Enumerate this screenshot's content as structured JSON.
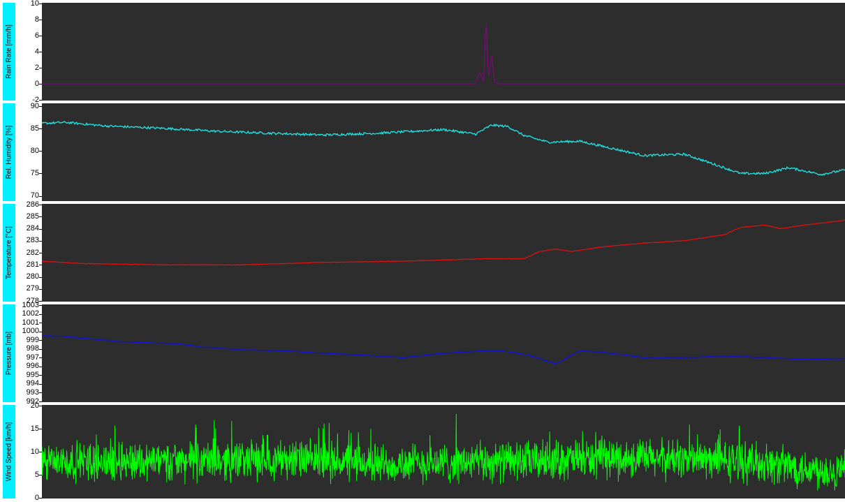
{
  "chart_data": [
    {
      "type": "line",
      "ylabel": "Rain Rate [mm/h]",
      "ylim": [
        -2,
        10
      ],
      "yticks": [
        -2,
        0,
        2,
        4,
        6,
        8,
        10
      ],
      "color": "#7a0a78",
      "background": "#2d2d2d",
      "x": [
        0,
        50,
        54,
        54.5,
        55,
        55.3,
        55.6,
        56,
        56.4,
        57,
        100
      ],
      "series": [
        {
          "values": [
            0,
            0,
            0,
            1.5,
            0.3,
            8.2,
            0.5,
            3.5,
            0.2,
            0,
            0
          ]
        }
      ]
    },
    {
      "type": "line",
      "ylabel": "Rel. Humidity [%]",
      "ylim": [
        69,
        90.5
      ],
      "yticks": [
        70,
        75,
        80,
        85,
        90
      ],
      "color": "#1fe8e8",
      "background": "#2d2d2d",
      "x": [
        0,
        3,
        8,
        15,
        22,
        30,
        35,
        42,
        50,
        54,
        56,
        58,
        60,
        63,
        67,
        70,
        75,
        80,
        83,
        87,
        90,
        93,
        97,
        100
      ],
      "series": [
        {
          "values": [
            86.2,
            86.4,
            85.6,
            85.1,
            84.4,
            83.9,
            83.6,
            84.0,
            84.8,
            83.8,
            85.8,
            85.5,
            83.5,
            82.0,
            82.2,
            81.0,
            79.0,
            79.3,
            77.5,
            75.0,
            75.0,
            76.3,
            74.8,
            75.8
          ]
        }
      ]
    },
    {
      "type": "line",
      "ylabel": "Temperature [°C]",
      "ylim": [
        278,
        286
      ],
      "yticks": [
        278,
        279,
        280,
        281,
        282,
        283,
        284,
        285,
        286
      ],
      "color": "#e01010",
      "background": "#2d2d2d",
      "x": [
        0,
        5,
        15,
        25,
        35,
        45,
        55,
        60,
        62,
        64,
        66,
        70,
        75,
        80,
        85,
        87,
        90,
        92,
        95,
        100
      ],
      "series": [
        {
          "values": [
            281.3,
            281.1,
            281.0,
            281.0,
            281.2,
            281.3,
            281.5,
            281.5,
            282.1,
            282.3,
            282.1,
            282.5,
            282.8,
            283.0,
            283.5,
            284.1,
            284.3,
            284.0,
            284.3,
            284.7
          ]
        }
      ]
    },
    {
      "type": "line",
      "ylabel": "Pressure [mb]",
      "ylim": [
        992,
        1003
      ],
      "yticks": [
        992,
        993,
        994,
        995,
        996,
        997,
        998,
        999,
        1000,
        1001,
        1002,
        1003
      ],
      "color": "#1010e0",
      "background": "#2d2d2d",
      "x": [
        0,
        3,
        10,
        17,
        20,
        25,
        30,
        35,
        40,
        45,
        50,
        55,
        58,
        61,
        64,
        67,
        70,
        75,
        80,
        85,
        90,
        95,
        100
      ],
      "series": [
        {
          "values": [
            999.5,
            999.4,
            998.8,
            998.6,
            998.2,
            997.9,
            997.8,
            997.5,
            997.3,
            997.0,
            997.5,
            997.8,
            997.7,
            997.2,
            996.3,
            997.8,
            997.6,
            997.0,
            997.0,
            997.2,
            997.0,
            996.8,
            996.9
          ]
        }
      ]
    },
    {
      "type": "line",
      "ylabel": "Wind Speed [km/h]",
      "ylim": [
        0,
        20
      ],
      "yticks": [
        0,
        5,
        10,
        15,
        20
      ],
      "color": "#00ff00",
      "background": "#2d2d2d",
      "x": [
        0,
        10,
        20,
        30,
        40,
        50,
        60,
        70,
        80,
        90,
        100
      ],
      "series": [
        {
          "values": [
            7.5,
            8.0,
            8.0,
            8.5,
            7.5,
            7.5,
            8.0,
            8.5,
            8.5,
            7.5,
            5.5
          ]
        }
      ],
      "noise_amplitude": 3.5
    }
  ]
}
